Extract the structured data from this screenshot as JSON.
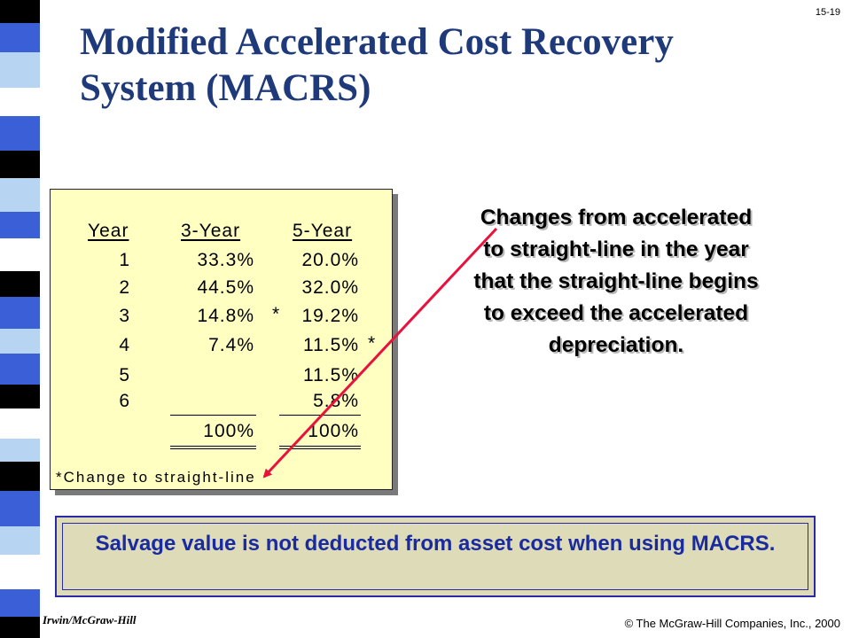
{
  "slide_number": "15-19",
  "title": "Modified Accelerated Cost Recovery System (MACRS)",
  "table": {
    "headers": [
      "Year",
      "3-Year",
      "5-Year"
    ],
    "rows": [
      {
        "year": "1",
        "three": "33.3%",
        "five": "20.0%",
        "mark_three": "",
        "mark_five": ""
      },
      {
        "year": "2",
        "three": "44.5%",
        "five": "32.0%",
        "mark_three": "",
        "mark_five": ""
      },
      {
        "year": "3",
        "three": "14.8%",
        "five": "19.2%",
        "mark_three": "*",
        "mark_five": ""
      },
      {
        "year": "4",
        "three": "7.4%",
        "five": "11.5%",
        "mark_three": "",
        "mark_five": "*"
      },
      {
        "year": "5",
        "three": "",
        "five": "11.5%",
        "mark_three": "",
        "mark_five": ""
      },
      {
        "year": "6",
        "three": "",
        "five": "5.8%",
        "mark_three": "",
        "mark_five": ""
      }
    ],
    "totals": {
      "three": "100%",
      "five": "100%"
    },
    "footnote": "*Change to straight-line"
  },
  "note": "Changes from accelerated to straight-line in the year that the straight-line begins to exceed the accelerated depreciation.",
  "salvage_note": "Salvage value is not deducted from asset cost when using MACRS.",
  "footer_left": "Irwin/McGraw-Hill",
  "footer_right": "© The McGraw-Hill Companies, Inc., 2000",
  "colors": {
    "title": "#1f3a7a",
    "table_background": "#ffffc2",
    "arrow": "#e8123c",
    "salvage_background": "#dedcb8",
    "salvage_text": "#1a2aa0",
    "stripe": [
      "#000000",
      "#3a5fd6",
      "#b7d4f2",
      "#ffffff"
    ]
  }
}
